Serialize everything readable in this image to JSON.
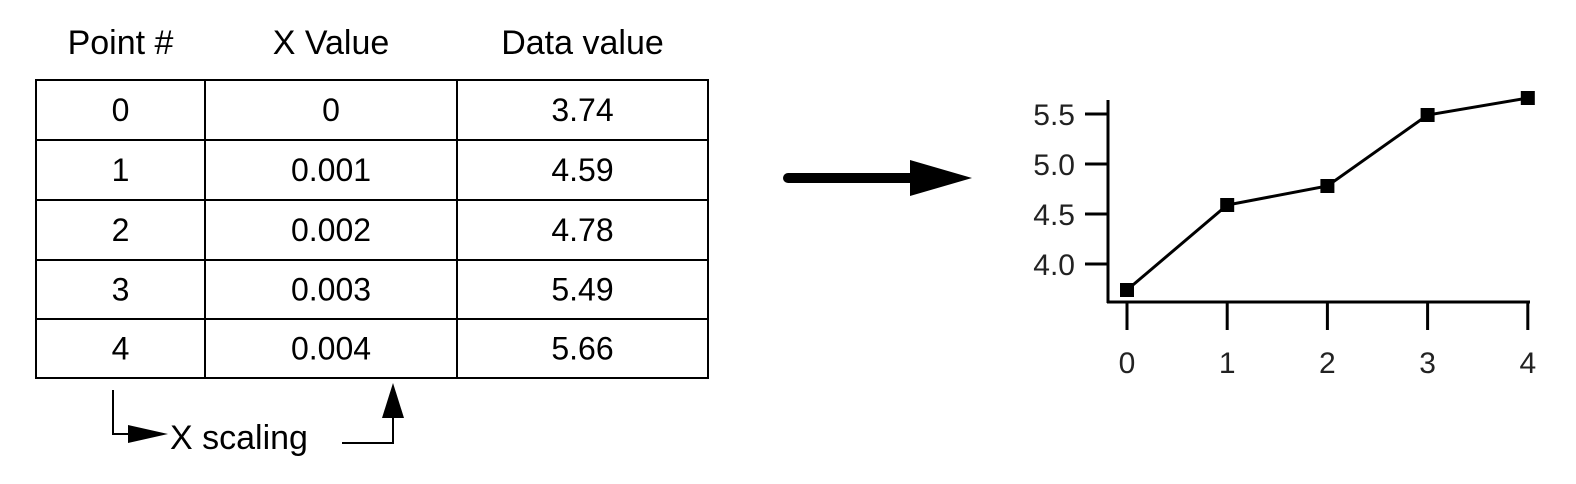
{
  "table": {
    "headers": [
      "Point #",
      "X Value",
      "Data value"
    ],
    "rows": [
      [
        "0",
        "0",
        "3.74"
      ],
      [
        "1",
        "0.001",
        "4.59"
      ],
      [
        "2",
        "0.002",
        "4.78"
      ],
      [
        "3",
        "0.003",
        "5.49"
      ],
      [
        "4",
        "0.004",
        "5.66"
      ]
    ]
  },
  "annotation": {
    "label": "X scaling"
  },
  "chart_data": {
    "type": "line",
    "x": [
      0,
      1,
      2,
      3,
      4
    ],
    "values": [
      3.74,
      4.59,
      4.78,
      5.49,
      5.66
    ],
    "x_ticks": [
      "0",
      "1",
      "2",
      "3",
      "4"
    ],
    "y_ticks": [
      "4.0",
      "4.5",
      "5.0",
      "5.5"
    ],
    "marker": "square",
    "grid": false,
    "color": "#000000"
  }
}
